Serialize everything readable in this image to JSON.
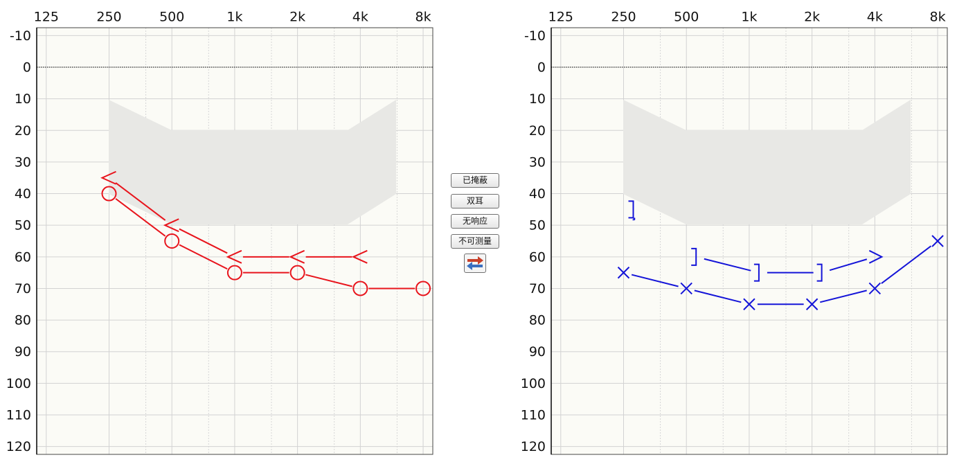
{
  "chart_data": [
    {
      "type": "line",
      "xscale": "log",
      "y_inverted": true,
      "grid": true,
      "reference_line": 0,
      "xlim": [
        112.5,
        8900
      ],
      "ylim": [
        -12.5,
        122.5
      ],
      "xticks": [
        125,
        250,
        500,
        {
          "value": 1000,
          "label": "1k"
        },
        {
          "value": 2000,
          "label": "2k"
        },
        {
          "value": 4000,
          "label": "4k"
        },
        {
          "value": 8000,
          "label": "8k"
        }
      ],
      "xminor": [
        375,
        750,
        1500,
        3000,
        6000
      ],
      "yticks": [
        -10,
        0,
        10,
        20,
        30,
        40,
        50,
        60,
        70,
        80,
        90,
        100,
        110,
        120
      ],
      "series": [
        {
          "color": "#e8141c",
          "marker": "circle",
          "x": [
            250,
            500,
            1000,
            2000,
            4000,
            8000
          ],
          "values": [
            40,
            55,
            65,
            65,
            70,
            70
          ]
        },
        {
          "color": "#e8141c",
          "marker": "<",
          "x": [
            250,
            500,
            1000,
            2000,
            4000
          ],
          "values": [
            35,
            50,
            60,
            60,
            60
          ]
        }
      ]
    },
    {
      "type": "line",
      "xscale": "log",
      "y_inverted": true,
      "grid": true,
      "reference_line": 0,
      "xlim": [
        112.5,
        8900
      ],
      "ylim": [
        -12.5,
        122.5
      ],
      "xticks": [
        125,
        250,
        500,
        {
          "value": 1000,
          "label": "1k"
        },
        {
          "value": 2000,
          "label": "2k"
        },
        {
          "value": 4000,
          "label": "4k"
        },
        {
          "value": 8000,
          "label": "8k"
        }
      ],
      "xminor": [
        375,
        750,
        1500,
        3000,
        6000
      ],
      "yticks": [
        -10,
        0,
        10,
        20,
        30,
        40,
        50,
        60,
        70,
        80,
        90,
        100,
        110,
        120
      ],
      "series": [
        {
          "color": "#1414d8",
          "marker": "x",
          "x": [
            250,
            500,
            1000,
            2000,
            4000,
            8000
          ],
          "values": [
            65,
            70,
            75,
            75,
            70,
            55
          ]
        },
        {
          "color": "#1414d8",
          "markers": [
            "]",
            "]",
            "]",
            ">"
          ],
          "x": [
            500,
            1000,
            2000,
            4000
          ],
          "values": [
            60,
            65,
            65,
            60
          ]
        },
        {
          "color": "#1414d8",
          "marker": "]",
          "no_response": true,
          "connect": false,
          "x": [
            250
          ],
          "values": [
            45
          ]
        }
      ]
    }
  ],
  "buttons": [
    "已掩蔽",
    "双耳",
    "无响应",
    "不可测量"
  ]
}
